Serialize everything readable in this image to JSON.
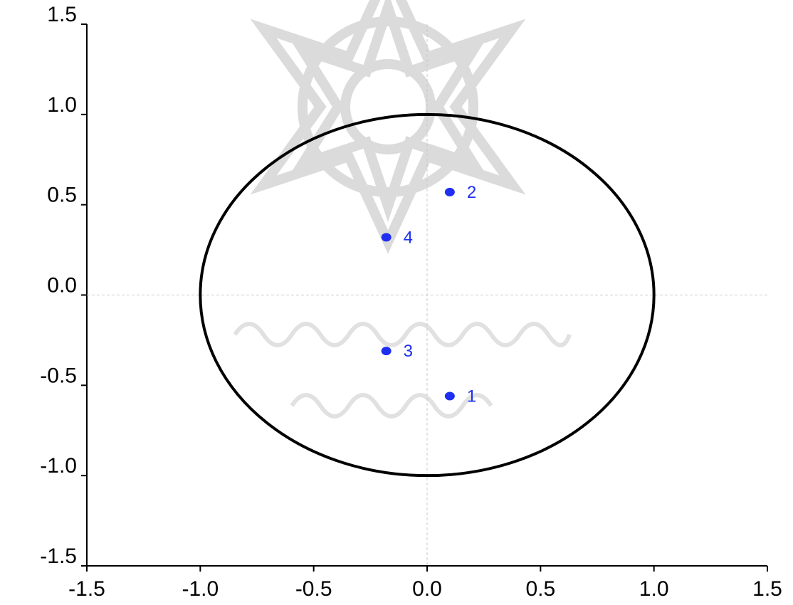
{
  "chart_data": {
    "type": "scatter",
    "title": "",
    "xlabel": "",
    "ylabel": "",
    "xlim": [
      -1.5,
      1.5
    ],
    "ylim": [
      -1.5,
      1.5
    ],
    "x_ticks": [
      "-1.5",
      "-1.0",
      "-0.5",
      "0.0",
      "0.5",
      "1.0",
      "1.5"
    ],
    "y_ticks": [
      "1.5",
      "1.0",
      "0.5",
      "0.0",
      "-0.5",
      "-1.0",
      "-1.5"
    ],
    "unit_circle": {
      "center": [
        0,
        0
      ],
      "radius": 1
    },
    "zero_gridlines": true,
    "points": [
      {
        "label": "1",
        "x": 0.1,
        "y": -0.56
      },
      {
        "label": "2",
        "x": 0.1,
        "y": 0.57
      },
      {
        "label": "3",
        "x": -0.18,
        "y": -0.31
      },
      {
        "label": "4",
        "x": -0.18,
        "y": 0.32
      }
    ],
    "colors": {
      "points": "#1f2ff0",
      "circle": "#000000",
      "gridline": "#c8c8c8",
      "watermark": "#bdbdbd"
    }
  }
}
